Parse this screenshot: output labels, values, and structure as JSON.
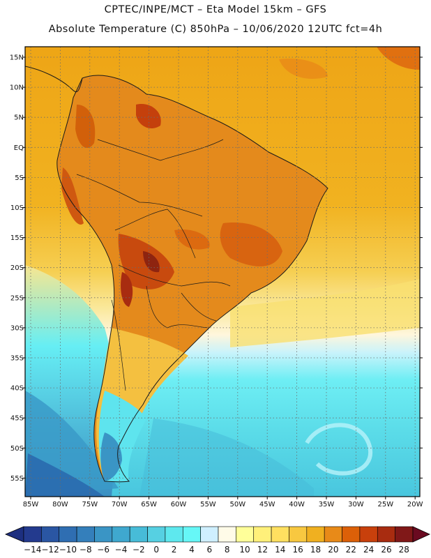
{
  "header": {
    "line1": "CPTEC/INPE/MCT –  Eta Model 15km – GFS",
    "line2": "Absolute Temperature (C) 850hPa – 10/06/2020 12UTC fct=4h"
  },
  "axes": {
    "lat_labels": [
      "15N",
      "10N",
      "5N",
      "EQ",
      "5S",
      "10S",
      "15S",
      "20S",
      "25S",
      "30S",
      "35S",
      "40S",
      "45S",
      "50S",
      "55S"
    ],
    "lon_labels": [
      "85W",
      "80W",
      "75W",
      "70W",
      "65W",
      "60W",
      "55W",
      "50W",
      "45W",
      "40W",
      "35W",
      "30W",
      "25W",
      "20W"
    ]
  },
  "colorbar": {
    "labels": [
      "-14",
      "-12",
      "-10",
      "-8",
      "-6",
      "-4",
      "-2",
      "0",
      "2",
      "4",
      "6",
      "8",
      "10",
      "12",
      "14",
      "16",
      "18",
      "20",
      "22",
      "24",
      "26",
      "28"
    ],
    "low_color": "#1d2f80",
    "high_color": "#6a0a20",
    "colors": [
      "#233a8e",
      "#2a56a3",
      "#2f6eb2",
      "#347fbb",
      "#3a95c5",
      "#3fa8cf",
      "#47bcd8",
      "#56d0e2",
      "#5ee8ee",
      "#66f7f7",
      "#cfefff",
      "#fffbe8",
      "#ffff99",
      "#fff07a",
      "#ffe060",
      "#f8c840",
      "#f0b020",
      "#e88a18",
      "#dc6008",
      "#c8400c",
      "#a82c10",
      "#801818"
    ]
  },
  "map": {
    "ocean_north": "#f0ae18",
    "ocean_mid": "#f8d85a",
    "ocean_south": "#66f0f4",
    "land_warm": "#e89020",
    "land_hot": "#d86a10"
  }
}
